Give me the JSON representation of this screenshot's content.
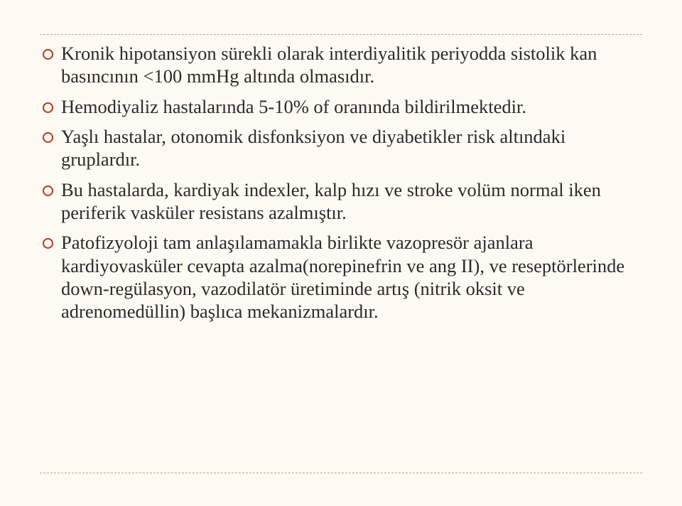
{
  "slide": {
    "background_color": "#fdf9f3",
    "bullet_ring_color": "#b23a1a",
    "text_color": "#2b2b2b",
    "rule_color": "#b8a98a",
    "font_family": "Georgia, serif",
    "font_size_pt": 20,
    "bullets": [
      "Kronik hipotansiyon sürekli olarak  interdiyalitik periyodda sistolik kan basıncının  <100 mmHg altında olmasıdır.",
      "Hemodiyaliz hastalarında  5-10% of oranında bildirilmektedir.",
      " Yaşlı hastalar, otonomik disfonksiyon ve diyabetikler risk altındaki gruplardır.",
      "Bu hastalarda, kardiyak indexler, kalp hızı ve stroke volüm normal iken periferik vasküler resistans azalmıştır.",
      "Patofizyoloji tam anlaşılamamakla birlikte vazopresör ajanlara kardiyovasküler cevapta azalma(norepinefrin ve ang II),  ve reseptörlerinde down-regülasyon,  vazodilatör üretiminde artış (nitrik oksit ve adrenomedüllin) başlıca mekanizmalardır."
    ]
  }
}
